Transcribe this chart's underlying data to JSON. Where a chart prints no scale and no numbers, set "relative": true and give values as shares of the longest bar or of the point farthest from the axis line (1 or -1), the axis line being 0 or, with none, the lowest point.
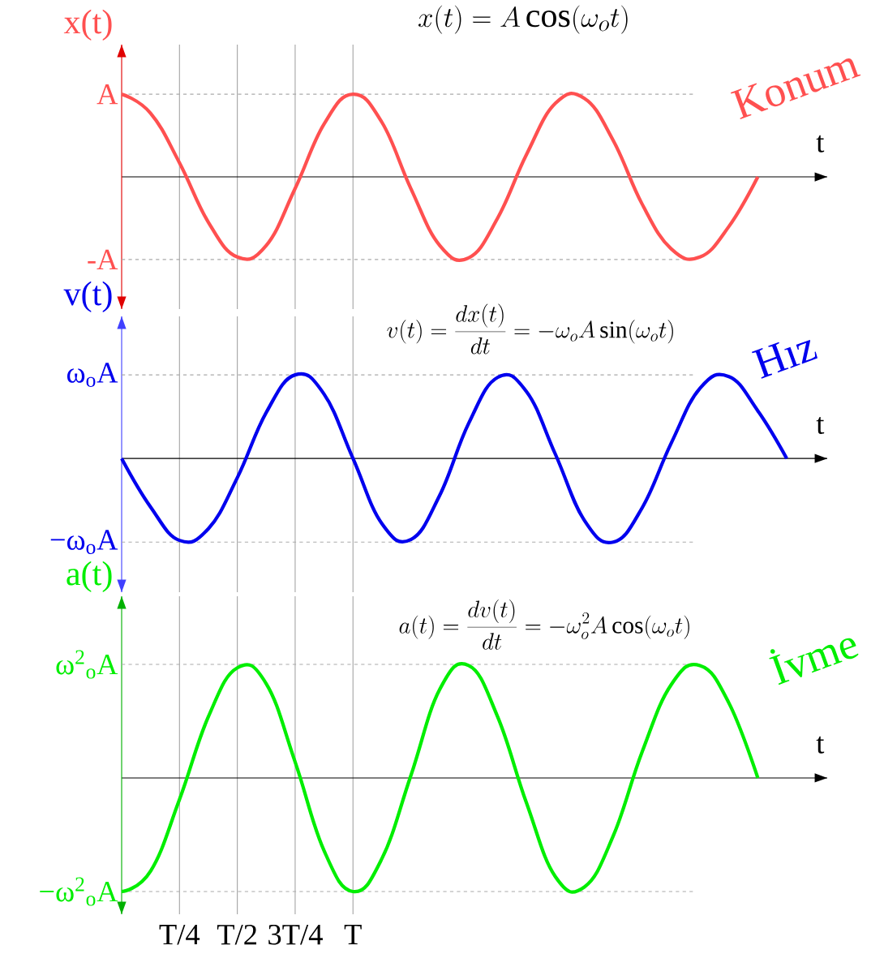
{
  "chart_data": [
    {
      "type": "line",
      "title": "x(t) = A\\cos(\\omega_o t)",
      "xlabel": "t",
      "ylabel": "x(t)",
      "annotations": [
        "Konum"
      ],
      "relative": true,
      "categories": [
        null,
        null,
        null,
        null,
        null,
        null,
        null,
        null,
        null,
        null,
        null,
        null,
        null,
        null,
        null,
        null,
        null,
        null,
        null,
        null,
        null,
        null,
        null,
        null,
        null
      ],
      "series": [
        {
          "color": "#ff5050",
          "values": [
            1,
            0.77,
            0.17,
            -0.55,
            -0.97,
            -0.83,
            -0.14,
            0.64,
            1,
            0.66,
            -0.14,
            -0.83,
            -0.98,
            -0.5,
            0.27,
            0.89,
            0.95,
            0.44,
            -0.33,
            -0.87,
            -0.97,
            -0.6,
            0,
            null,
            null
          ]
        }
      ],
      "grid": "x",
      "marker": "none",
      "line_style": "solid",
      "ref_lines": [
        {
          "axis": "y",
          "value": 1,
          "label": "A",
          "color": "#aaaaaa",
          "line_style": "dashed"
        },
        {
          "axis": "y",
          "value": -1,
          "label": "-A",
          "color": "#aaaaaa",
          "line_style": "dashed"
        }
      ]
    },
    {
      "type": "line",
      "title": "v(t) = \\frac{dx(t)}{dt} = -\\omega_o A\\sin(\\omega_o t)",
      "xlabel": "t",
      "ylabel": "v(t)",
      "annotations": [
        "Hız"
      ],
      "relative": true,
      "categories": [
        null,
        null,
        null,
        null,
        null,
        null,
        null,
        null,
        null,
        null,
        null,
        null,
        null,
        null,
        null,
        null,
        null,
        null,
        null,
        null,
        null,
        null,
        null,
        null,
        null
      ],
      "series": [
        {
          "color": "#0000ee",
          "values": [
            0,
            -0.58,
            -0.98,
            -0.84,
            -0.23,
            0.55,
            1,
            0.77,
            0,
            -0.78,
            -0.97,
            -0.44,
            0.42,
            0.97,
            0.8,
            0.05,
            -0.74,
            -1,
            -0.59,
            0.18,
            0.84,
            0.98,
            0.57,
            0,
            null
          ]
        }
      ],
      "grid": "x",
      "marker": "none",
      "line_style": "solid",
      "ref_lines": [
        {
          "axis": "y",
          "value": 1,
          "label": "ω$_{o}$A",
          "color": "#aaaaaa",
          "line_style": "dashed"
        },
        {
          "axis": "y",
          "value": -1,
          "label": "−ω$_{o}$A",
          "color": "#aaaaaa",
          "line_style": "dashed"
        }
      ]
    },
    {
      "type": "line",
      "title": "a(t) = \\frac{dv(t)}{dt} = -\\omega_o^2 A\\cos(\\omega_o t)",
      "xlabel": "t",
      "ylabel": "a(t)",
      "annotations": [
        "İvme"
      ],
      "relative": true,
      "categories": [
        null,
        null,
        "T/4",
        null,
        "T/2",
        null,
        "3T/4",
        null,
        "T",
        null,
        null,
        null,
        null,
        null,
        null,
        null,
        null,
        null,
        null,
        null,
        null,
        null,
        null,
        null,
        null
      ],
      "series": [
        {
          "color": "#00ee00",
          "values": [
            -1,
            -0.82,
            -0.19,
            0.54,
            0.97,
            0.83,
            0.14,
            -0.64,
            -1,
            -0.71,
            0.02,
            0.78,
            0.99,
            0.54,
            -0.22,
            -0.87,
            -0.96,
            -0.51,
            0.23,
            0.82,
            0.99,
            0.66,
            0,
            null,
            null
          ]
        }
      ],
      "grid": "x",
      "marker": "none",
      "line_style": "solid",
      "ref_lines": [
        {
          "axis": "y",
          "value": 1,
          "label": "ω$^{2}$$_{o}$A",
          "color": "#aaaaaa",
          "line_style": "dashed"
        },
        {
          "axis": "y",
          "value": -1,
          "label": "−ω$^{2}$$_{o}$A",
          "color": "#aaaaaa",
          "line_style": "dashed"
        }
      ]
    }
  ]
}
